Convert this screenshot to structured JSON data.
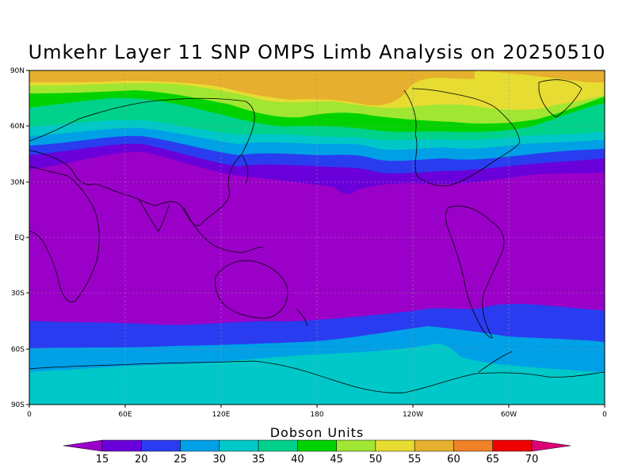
{
  "title": "Umkehr Layer 11 SNP OMPS Limb Analysis on 20250510",
  "colorbar": {
    "title": "Dobson Units",
    "ticks": [
      "15",
      "20",
      "25",
      "30",
      "35",
      "40",
      "45",
      "50",
      "55",
      "60",
      "65",
      "70"
    ],
    "colors": [
      "#9b00c9",
      "#6a00d9",
      "#2a3cf0",
      "#00a0e6",
      "#00c8c8",
      "#00d28c",
      "#00d200",
      "#a0e632",
      "#e6dc32",
      "#e6af2d",
      "#f08228",
      "#f00000",
      "#dc0078"
    ]
  },
  "map": {
    "lat_labels": [
      "90N",
      "60N",
      "30N",
      "EQ",
      "30S",
      "60S",
      "90S"
    ],
    "lon_labels": [
      "0",
      "60E",
      "120E",
      "180",
      "120W",
      "60W",
      "0"
    ]
  }
}
